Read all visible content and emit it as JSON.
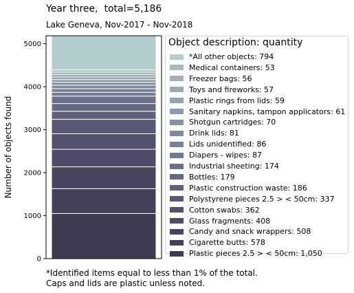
{
  "title": "Year three,  total=5,186",
  "subtitle": "Lake Geneva, Nov-2017 - Nov-2018",
  "footnote": [
    "*Identified items equal to less than 1% of the total.",
    "Caps and lids are plastic unless noted."
  ],
  "legend_title": "Object description: quantity",
  "chart_data": {
    "type": "bar",
    "stacked": true,
    "title": "Year three,  total=5,186",
    "subtitle": "Lake Geneva, Nov-2017 - Nov-2018",
    "ylabel": "Number of objects found",
    "xlabel": "",
    "ylim": [
      0,
      5186
    ],
    "yticks": [
      0,
      1000,
      2000,
      3000,
      4000,
      5000
    ],
    "legend_position": "right",
    "series": [
      {
        "name": "Plastic pieces 2.5 > < 50cm: 1,050",
        "value": 1050,
        "color": "#3e3b50"
      },
      {
        "name": "Cigarette butts: 578",
        "value": 578,
        "color": "#434058"
      },
      {
        "name": "Candy and snack wrappers: 508",
        "value": 508,
        "color": "#48465e"
      },
      {
        "name": "Glass fragments: 408",
        "value": 408,
        "color": "#4e4c66"
      },
      {
        "name": "Cotton swabs: 362",
        "value": 362,
        "color": "#53526d"
      },
      {
        "name": "Polystyrene pieces 2.5 > < 50cm: 337",
        "value": 337,
        "color": "#595974"
      },
      {
        "name": "Plastic construction waste: 186",
        "value": 186,
        "color": "#5f617b"
      },
      {
        "name": "Bottles: 179",
        "value": 179,
        "color": "#656982"
      },
      {
        "name": "Industrial sheeting: 174",
        "value": 174,
        "color": "#6b718a"
      },
      {
        "name": "Diapers - wipes: 87",
        "value": 87,
        "color": "#727a90"
      },
      {
        "name": "Lids unidentified: 86",
        "value": 86,
        "color": "#788296"
      },
      {
        "name": "Drink lids: 81",
        "value": 81,
        "color": "#7f8a9c"
      },
      {
        "name": "Shotgun cartridges: 70",
        "value": 70,
        "color": "#8692a2"
      },
      {
        "name": "Sanitary napkins, tampon applicators: 61",
        "value": 61,
        "color": "#8d9aa8"
      },
      {
        "name": "Plastic rings from lids: 59",
        "value": 59,
        "color": "#94a2ad"
      },
      {
        "name": "Toys and fireworks: 57",
        "value": 57,
        "color": "#9baab2"
      },
      {
        "name": "Freezer bags: 56",
        "value": 56,
        "color": "#a2b1b7"
      },
      {
        "name": "Medical containers: 53",
        "value": 53,
        "color": "#aab9bc"
      },
      {
        "name": "*All other objects: 794",
        "value": 794,
        "color": "#b3cdce"
      }
    ]
  }
}
